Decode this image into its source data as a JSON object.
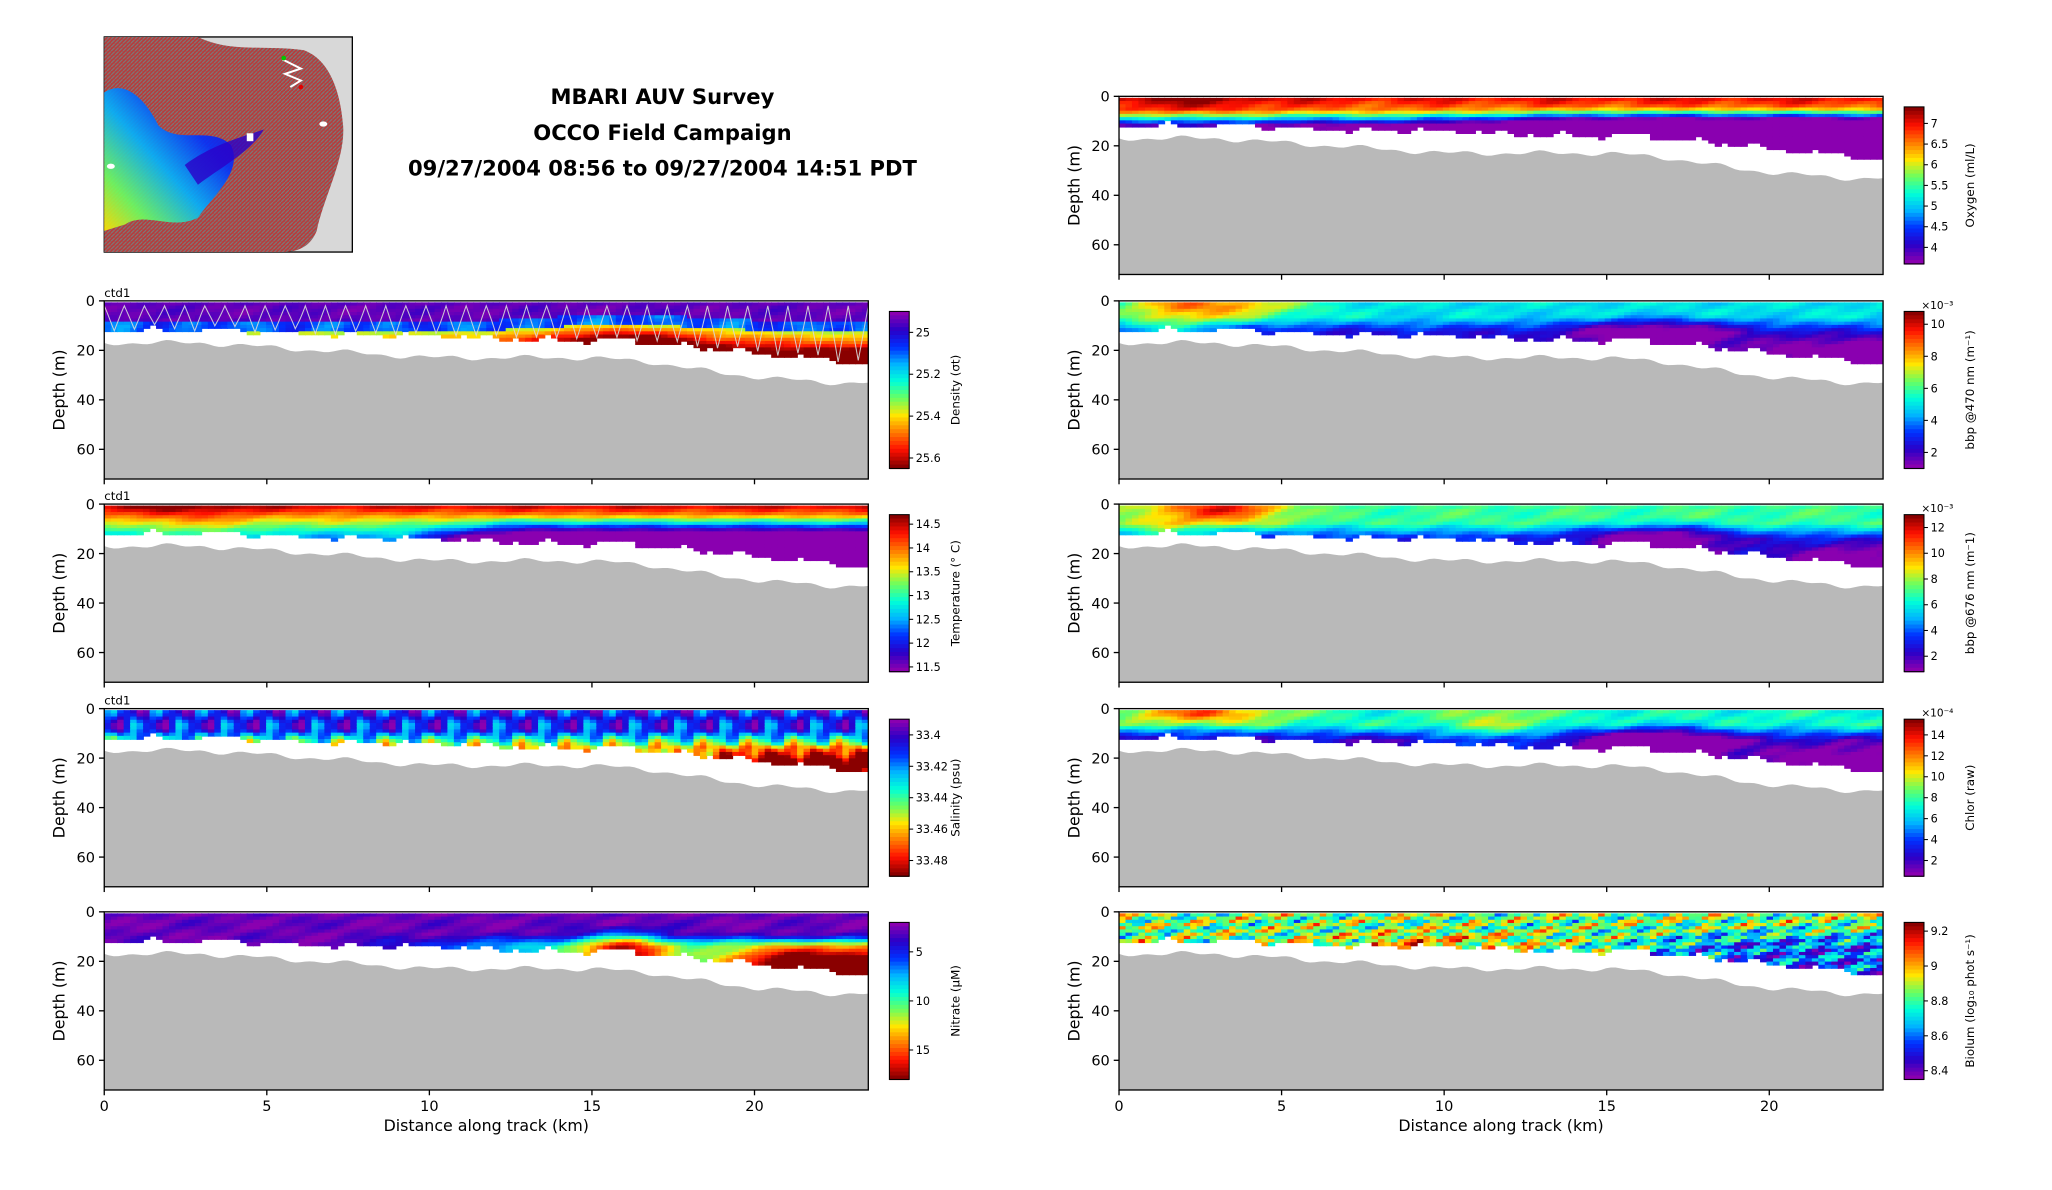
{
  "header": {
    "title_lines": [
      "MBARI AUV Survey",
      "OCCO Field Campaign",
      "09/27/2004 08:56 to 09/27/2004 14:51 PDT"
    ]
  },
  "map_inset": {
    "land_color": "#d8d8d8",
    "ocean_colormap": "jet bathymetry"
  },
  "colors": {
    "jet": [
      "#8a00b0",
      "#2a00c8",
      "#0030ff",
      "#00b4ff",
      "#00ffd8",
      "#6aff60",
      "#ffe600",
      "#ff7a00",
      "#ff1000",
      "#8a0000"
    ],
    "bottom_fill": "#b9b9b9",
    "missing_gap": "#ffffff"
  },
  "chart_data": [
    {
      "type": "heatmap",
      "side": "left",
      "row": 0,
      "variable_label": "Density (σt)",
      "tag": "ctd1",
      "ylabel": "Depth (m)",
      "yticks": [
        0,
        20,
        40,
        60
      ],
      "ylim": [
        72,
        0
      ],
      "xticks": [
        0,
        5,
        10,
        15,
        20
      ],
      "xlim": [
        0,
        23.5
      ],
      "colorbar_ticks": [
        "25",
        "25.2",
        "25.4",
        "25.6"
      ],
      "colorbar_range": [
        24.9,
        25.65
      ],
      "colorbar_reversed": true,
      "exponent_label": "",
      "show_xlabel": false,
      "pattern": "density",
      "trajectory": true
    },
    {
      "type": "heatmap",
      "side": "left",
      "row": 1,
      "variable_label": "Temperature (° C)",
      "tag": "ctd1",
      "ylabel": "Depth (m)",
      "yticks": [
        0,
        20,
        40,
        60
      ],
      "ylim": [
        72,
        0
      ],
      "xticks": [
        0,
        5,
        10,
        15,
        20
      ],
      "xlim": [
        0,
        23.5
      ],
      "colorbar_ticks": [
        "14.5",
        "14",
        "13.5",
        "13",
        "12.5",
        "12",
        "11.5"
      ],
      "colorbar_range": [
        11.4,
        14.7
      ],
      "colorbar_reversed": false,
      "exponent_label": "",
      "show_xlabel": false,
      "pattern": "temperature",
      "trajectory": false
    },
    {
      "type": "heatmap",
      "side": "left",
      "row": 2,
      "variable_label": "Salinity (psu)",
      "tag": "ctd1",
      "ylabel": "Depth (m)",
      "yticks": [
        0,
        20,
        40,
        60
      ],
      "ylim": [
        72,
        0
      ],
      "xticks": [
        0,
        5,
        10,
        15,
        20
      ],
      "xlim": [
        0,
        23.5
      ],
      "colorbar_ticks": [
        "33.4",
        "33.42",
        "33.44",
        "33.46",
        "33.48"
      ],
      "colorbar_range": [
        33.39,
        33.49
      ],
      "colorbar_reversed": true,
      "exponent_label": "",
      "show_xlabel": false,
      "pattern": "salinity",
      "trajectory": false
    },
    {
      "type": "heatmap",
      "side": "left",
      "row": 3,
      "variable_label": "Nitrate (μM)",
      "tag": "",
      "ylabel": "Depth (m)",
      "yticks": [
        0,
        20,
        40,
        60
      ],
      "ylim": [
        72,
        0
      ],
      "xticks": [
        0,
        5,
        10,
        15,
        20
      ],
      "xlim": [
        0,
        23.5
      ],
      "xlabel": "Distance along track (km)",
      "colorbar_ticks": [
        "5",
        "10",
        "15"
      ],
      "colorbar_range": [
        2,
        18
      ],
      "colorbar_reversed": true,
      "exponent_label": "",
      "show_xlabel": true,
      "pattern": "nitrate",
      "trajectory": false
    },
    {
      "type": "heatmap",
      "side": "right",
      "row": 0,
      "variable_label": "Oxygen (ml/L)",
      "tag": "",
      "ylabel": "Depth (m)",
      "yticks": [
        0,
        20,
        40,
        60
      ],
      "ylim": [
        72,
        0
      ],
      "xticks": [
        0,
        5,
        10,
        15,
        20
      ],
      "xlim": [
        0,
        23.5
      ],
      "colorbar_ticks": [
        "7",
        "6.5",
        "6",
        "5.5",
        "5",
        "4.5",
        "4"
      ],
      "colorbar_range": [
        3.6,
        7.4
      ],
      "colorbar_reversed": false,
      "exponent_label": "",
      "show_xlabel": false,
      "pattern": "oxygen",
      "trajectory": false
    },
    {
      "type": "heatmap",
      "side": "right",
      "row": 1,
      "variable_label": "bbp @470 nm (m⁻¹)",
      "tag": "",
      "ylabel": "Depth (m)",
      "yticks": [
        0,
        20,
        40,
        60
      ],
      "ylim": [
        72,
        0
      ],
      "xticks": [
        0,
        5,
        10,
        15,
        20
      ],
      "xlim": [
        0,
        23.5
      ],
      "colorbar_ticks": [
        "10",
        "8",
        "6",
        "4",
        "2"
      ],
      "colorbar_range": [
        1.0,
        10.8
      ],
      "colorbar_reversed": false,
      "exponent_label": "×10⁻³",
      "show_xlabel": false,
      "pattern": "bbp470",
      "trajectory": false
    },
    {
      "type": "heatmap",
      "side": "right",
      "row": 2,
      "variable_label": "bbp @676 nm (m⁻1)",
      "tag": "",
      "ylabel": "Depth (m)",
      "yticks": [
        0,
        20,
        40,
        60
      ],
      "ylim": [
        72,
        0
      ],
      "xticks": [
        0,
        5,
        10,
        15,
        20
      ],
      "xlim": [
        0,
        23.5
      ],
      "colorbar_ticks": [
        "12",
        "10",
        "8",
        "6",
        "4",
        "2"
      ],
      "colorbar_range": [
        0.8,
        13.0
      ],
      "colorbar_reversed": false,
      "exponent_label": "×10⁻³",
      "show_xlabel": false,
      "pattern": "bbp676",
      "trajectory": false
    },
    {
      "type": "heatmap",
      "side": "right",
      "row": 3,
      "variable_label": "Chlor (raw)",
      "tag": "",
      "ylabel": "Depth (m)",
      "yticks": [
        0,
        20,
        40,
        60
      ],
      "ylim": [
        72,
        0
      ],
      "xticks": [
        0,
        5,
        10,
        15,
        20
      ],
      "xlim": [
        0,
        23.5
      ],
      "colorbar_ticks": [
        "14",
        "12",
        "10",
        "8",
        "6",
        "4",
        "2"
      ],
      "colorbar_range": [
        0.5,
        15.5
      ],
      "colorbar_reversed": false,
      "exponent_label": "×10⁻⁴",
      "show_xlabel": false,
      "pattern": "chlor",
      "trajectory": false
    },
    {
      "type": "heatmap",
      "side": "right",
      "row": 4,
      "variable_label": "Biolum (log₁₀ phot s⁻¹)",
      "tag": "",
      "ylabel": "Depth (m)",
      "yticks": [
        0,
        20,
        40,
        60
      ],
      "ylim": [
        72,
        0
      ],
      "xticks": [
        0,
        5,
        10,
        15,
        20
      ],
      "xlim": [
        0,
        23.5
      ],
      "xlabel": "Distance along track (km)",
      "colorbar_ticks": [
        "9.2",
        "9",
        "8.8",
        "8.6",
        "8.4"
      ],
      "colorbar_range": [
        8.35,
        9.25
      ],
      "colorbar_reversed": false,
      "exponent_label": "",
      "show_xlabel": true,
      "pattern": "biolum",
      "trajectory": false
    }
  ]
}
